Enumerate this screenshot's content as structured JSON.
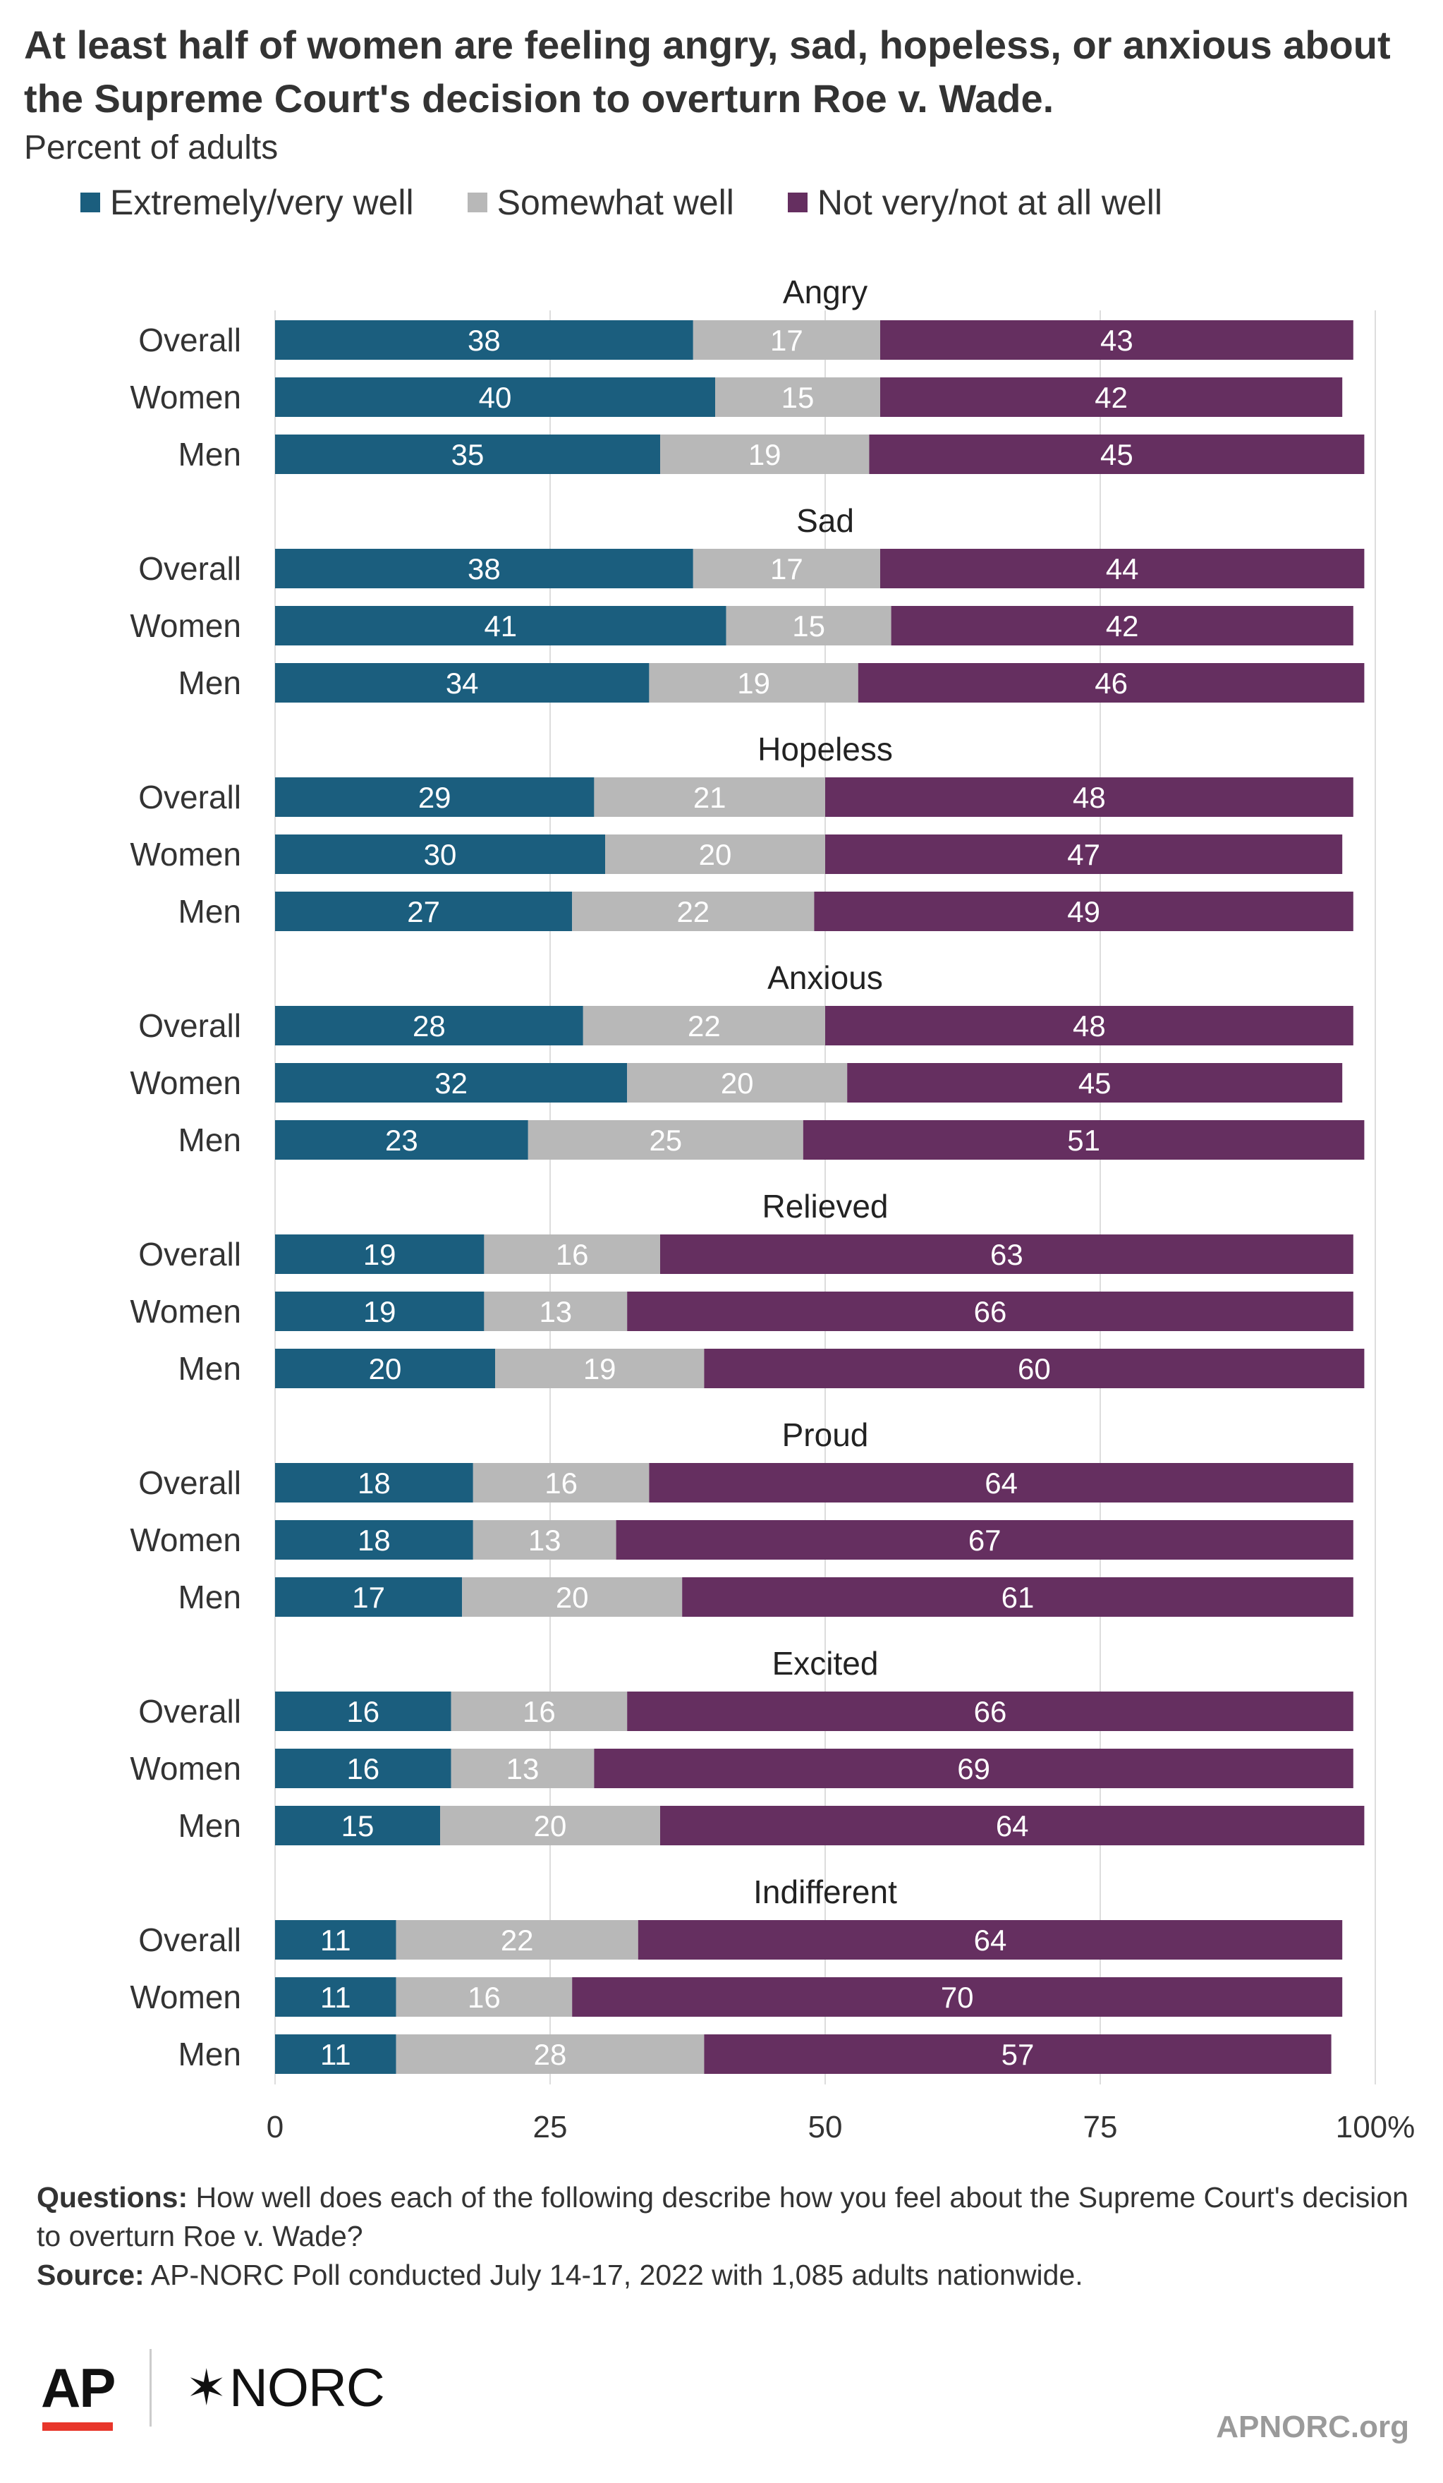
{
  "title": "At least half of women are feeling angry, sad, hopeless, or anxious about the Supreme Court's decision to overturn Roe v. Wade.",
  "subtitle": "Percent of adults",
  "colors": {
    "extremely": "#1b5e7e",
    "somewhat": "#b8b8b8",
    "notvery": "#652f60",
    "grid": "#dddddd",
    "text": "#333333"
  },
  "chart_data": {
    "type": "bar",
    "orientation": "horizontal",
    "stacked": true,
    "xlim": [
      0,
      100
    ],
    "xticks": [
      "0",
      "25",
      "50",
      "75",
      "100%"
    ],
    "grid": true,
    "legend_position": "top-left",
    "series": [
      {
        "name": "Extremely/very well",
        "color": "#1b5e7e"
      },
      {
        "name": "Somewhat well",
        "color": "#b8b8b8"
      },
      {
        "name": "Not very/not at all well",
        "color": "#652f60"
      }
    ],
    "groups": [
      {
        "label": "Angry",
        "rows": [
          {
            "label": "Overall",
            "values": [
              38,
              17,
              43
            ]
          },
          {
            "label": "Women",
            "values": [
              40,
              15,
              42
            ]
          },
          {
            "label": "Men",
            "values": [
              35,
              19,
              45
            ]
          }
        ]
      },
      {
        "label": "Sad",
        "rows": [
          {
            "label": "Overall",
            "values": [
              38,
              17,
              44
            ]
          },
          {
            "label": "Women",
            "values": [
              41,
              15,
              42
            ]
          },
          {
            "label": "Men",
            "values": [
              34,
              19,
              46
            ]
          }
        ]
      },
      {
        "label": "Hopeless",
        "rows": [
          {
            "label": "Overall",
            "values": [
              29,
              21,
              48
            ]
          },
          {
            "label": "Women",
            "values": [
              30,
              20,
              47
            ]
          },
          {
            "label": "Men",
            "values": [
              27,
              22,
              49
            ]
          }
        ]
      },
      {
        "label": "Anxious",
        "rows": [
          {
            "label": "Overall",
            "values": [
              28,
              22,
              48
            ]
          },
          {
            "label": "Women",
            "values": [
              32,
              20,
              45
            ]
          },
          {
            "label": "Men",
            "values": [
              23,
              25,
              51
            ]
          }
        ]
      },
      {
        "label": "Relieved",
        "rows": [
          {
            "label": "Overall",
            "values": [
              19,
              16,
              63
            ]
          },
          {
            "label": "Women",
            "values": [
              19,
              13,
              66
            ]
          },
          {
            "label": "Men",
            "values": [
              20,
              19,
              60
            ]
          }
        ]
      },
      {
        "label": "Proud",
        "rows": [
          {
            "label": "Overall",
            "values": [
              18,
              16,
              64
            ]
          },
          {
            "label": "Women",
            "values": [
              18,
              13,
              67
            ]
          },
          {
            "label": "Men",
            "values": [
              17,
              20,
              61
            ]
          }
        ]
      },
      {
        "label": "Excited",
        "rows": [
          {
            "label": "Overall",
            "values": [
              16,
              16,
              66
            ]
          },
          {
            "label": "Women",
            "values": [
              16,
              13,
              69
            ]
          },
          {
            "label": "Men",
            "values": [
              15,
              20,
              64
            ]
          }
        ]
      },
      {
        "label": "Indifferent",
        "rows": [
          {
            "label": "Overall",
            "values": [
              11,
              22,
              64
            ]
          },
          {
            "label": "Women",
            "values": [
              11,
              16,
              70
            ]
          },
          {
            "label": "Men",
            "values": [
              11,
              28,
              57
            ]
          }
        ]
      }
    ]
  },
  "notes": {
    "questions_label": "Questions:",
    "questions_text": "How well does each of the following describe how you feel about the Supreme Court's decision to overturn Roe v. Wade?",
    "source_label": "Source:",
    "source_text": "AP-NORC Poll conducted July 14-17, 2022 with 1,085 adults nationwide."
  },
  "footer": {
    "ap_logo": "AP",
    "norc_logo": "NORC",
    "norc_star": "✶",
    "site": "APNORC.org"
  }
}
